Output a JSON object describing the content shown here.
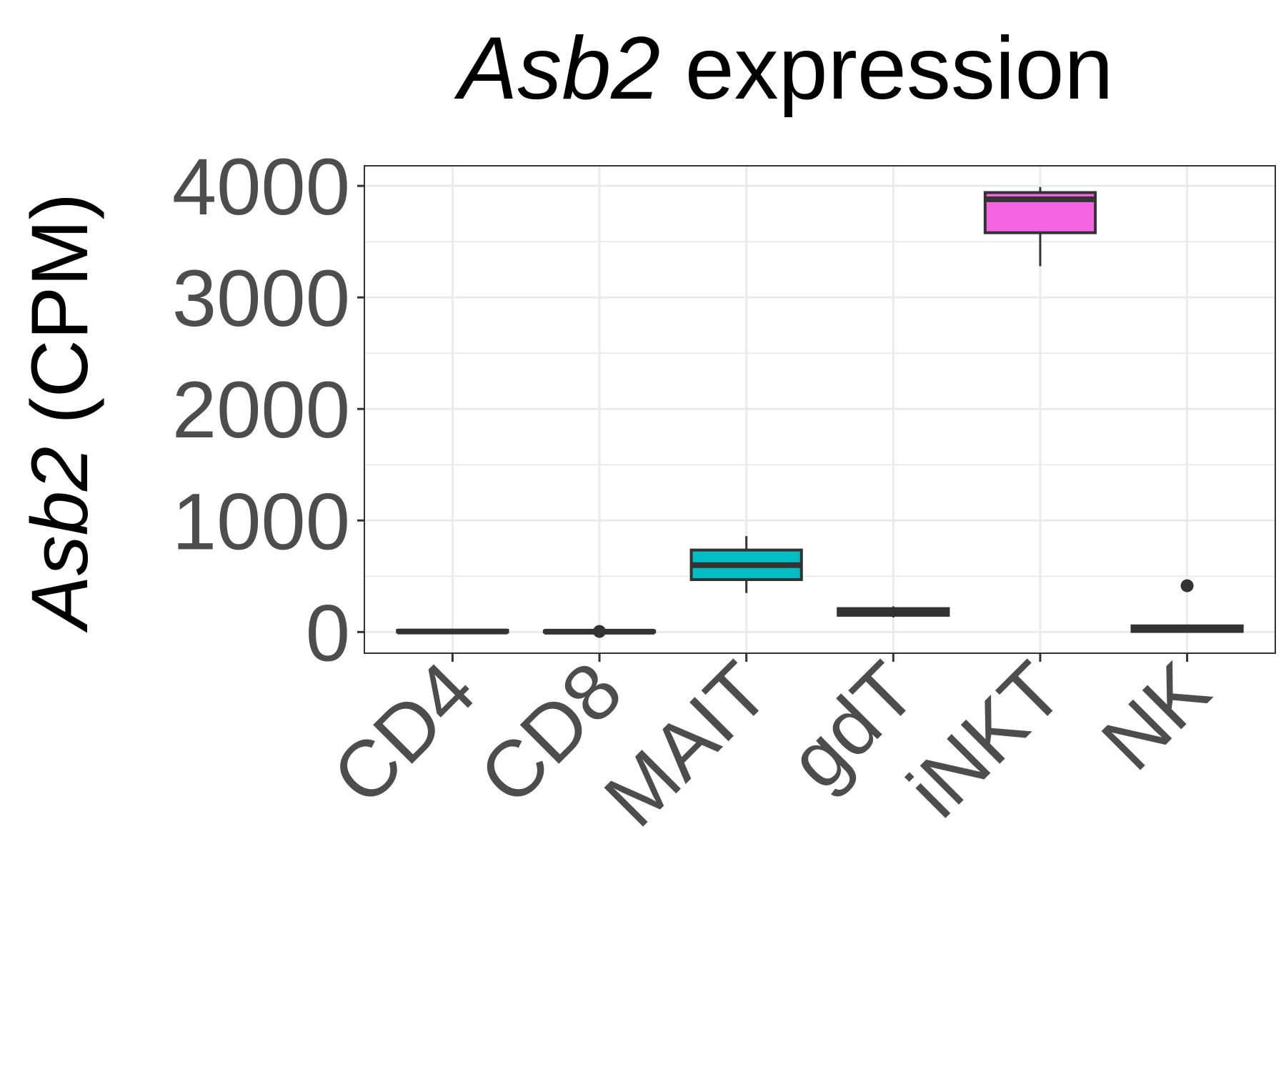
{
  "chart_data": {
    "type": "boxplot",
    "title_italic": "Asb2",
    "title_rest": " expression",
    "ylabel_italic": "Asb2",
    "ylabel_rest": " (CPM)",
    "xlabel": "",
    "categories": [
      "CD4",
      "CD8",
      "MAIT",
      "gdT",
      "iNKT",
      "NK"
    ],
    "ylim": [
      -190,
      4180
    ],
    "yticks": [
      0,
      1000,
      2000,
      3000,
      4000
    ],
    "grid": true,
    "legend": "none",
    "boxes": [
      {
        "category": "CD4",
        "whisker_low": 0,
        "q1": 0,
        "median": 5,
        "q3": 15,
        "whisker_high": 25,
        "outliers": [],
        "fill": "#F8766D"
      },
      {
        "category": "CD8",
        "whisker_low": 0,
        "q1": 0,
        "median": 3,
        "q3": 10,
        "whisker_high": 10,
        "outliers": [
          5
        ],
        "fill": "#B79F00"
      },
      {
        "category": "MAIT",
        "whisker_low": 350,
        "q1": 470,
        "median": 600,
        "q3": 735,
        "whisker_high": 860,
        "outliers": [],
        "fill": "#00BFC4"
      },
      {
        "category": "gdT",
        "whisker_low": 130,
        "q1": 150,
        "median": 180,
        "q3": 210,
        "whisker_high": 230,
        "outliers": [],
        "fill": "#00BA38"
      },
      {
        "category": "iNKT",
        "whisker_low": 3280,
        "q1": 3580,
        "median": 3880,
        "q3": 3940,
        "whisker_high": 3990,
        "outliers": [],
        "fill": "#F564E3"
      },
      {
        "category": "NK",
        "whisker_low": 0,
        "q1": 5,
        "median": 25,
        "q3": 55,
        "whisker_high": 60,
        "outliers": [
          415
        ],
        "fill": "#619CFF"
      }
    ]
  }
}
